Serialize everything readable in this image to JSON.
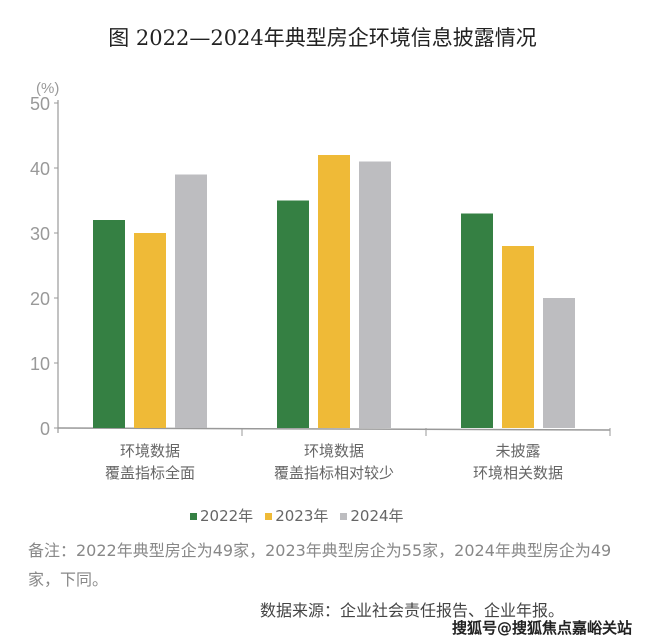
{
  "title": "图   2022—2024年典型房企环境信息披露情况",
  "chart_data": {
    "type": "bar",
    "title": "图   2022—2024年典型房企环境信息披露情况",
    "ylabel": "(%)",
    "ylim": [
      0,
      50
    ],
    "yticks": [
      "0",
      "10",
      "20",
      "30",
      "40",
      "50"
    ],
    "categories": [
      [
        "环境数据",
        "覆盖指标全面"
      ],
      [
        "环境数据",
        "覆盖指标相对较少"
      ],
      [
        "未披露",
        "环境相关数据"
      ]
    ],
    "series": [
      {
        "name": "2022年",
        "color": "#358043",
        "values": [
          32,
          35,
          33
        ]
      },
      {
        "name": "2023年",
        "color": "#EFBA37",
        "values": [
          30,
          42,
          28
        ]
      },
      {
        "name": "2024年",
        "color": "#BDBDC0",
        "values": [
          39,
          41,
          20
        ]
      }
    ],
    "legend": "bottom",
    "grid": false
  },
  "note": "备注：2022年典型房企为49家，2023年典型房企为55家，2024年典型房企为49家，下同。",
  "source": "数据来源：企业社会责任报告、企业年报。",
  "watermark": "搜狐号@搜狐焦点嘉峪关站"
}
